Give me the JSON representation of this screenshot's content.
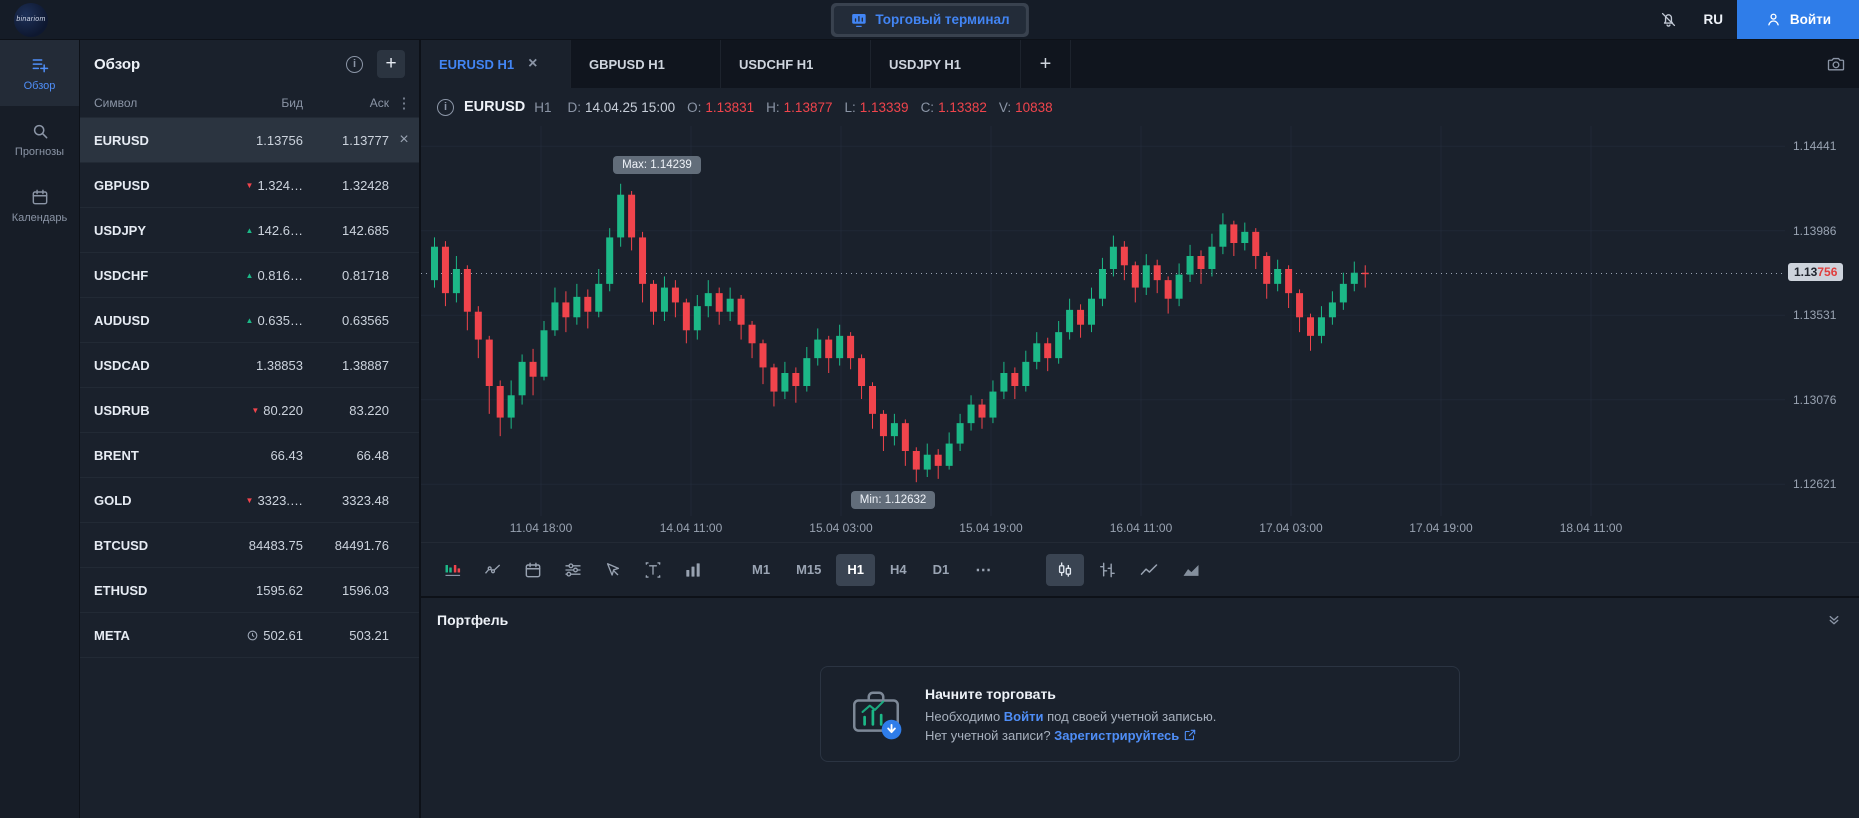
{
  "topbar": {
    "logo_text": "binariom",
    "terminal_button": "Торговый терминал",
    "language": "RU",
    "login_button": "Войти"
  },
  "nav": {
    "items": [
      {
        "id": "overview",
        "label": "Обзор",
        "icon": "watchlist",
        "active": true
      },
      {
        "id": "forecasts",
        "label": "Прогнозы",
        "icon": "search",
        "active": false
      },
      {
        "id": "calendar",
        "label": "Календарь",
        "icon": "calendar",
        "active": false
      }
    ]
  },
  "watchlist": {
    "title": "Обзор",
    "columns": {
      "symbol": "Символ",
      "bid": "Бид",
      "ask": "Аск"
    },
    "rows": [
      {
        "symbol": "EURUSD",
        "bid": "1.13756",
        "ask": "1.13777",
        "dir": "none",
        "active": true
      },
      {
        "symbol": "GBPUSD",
        "bid": "1.324…",
        "ask": "1.32428",
        "dir": "down"
      },
      {
        "symbol": "USDJPY",
        "bid": "142.6…",
        "ask": "142.685",
        "dir": "up"
      },
      {
        "symbol": "USDCHF",
        "bid": "0.816…",
        "ask": "0.81718",
        "dir": "up"
      },
      {
        "symbol": "AUDUSD",
        "bid": "0.635…",
        "ask": "0.63565",
        "dir": "up"
      },
      {
        "symbol": "USDCAD",
        "bid": "1.38853",
        "ask": "1.38887",
        "dir": "none"
      },
      {
        "symbol": "USDRUB",
        "bid": "80.220",
        "ask": "83.220",
        "dir": "down"
      },
      {
        "symbol": "BRENT",
        "bid": "66.43",
        "ask": "66.48",
        "dir": "none"
      },
      {
        "symbol": "GOLD",
        "bid": "3323.…",
        "ask": "3323.48",
        "dir": "down"
      },
      {
        "symbol": "BTCUSD",
        "bid": "84483.75",
        "ask": "84491.76",
        "dir": "none"
      },
      {
        "symbol": "ETHUSD",
        "bid": "1595.62",
        "ask": "1596.03",
        "dir": "none"
      },
      {
        "symbol": "META",
        "bid": "502.61",
        "ask": "503.21",
        "dir": "clock"
      }
    ]
  },
  "tabs": {
    "new_tab_label": "+",
    "items": [
      {
        "label": "EURUSD H1",
        "active": true,
        "closable": true
      },
      {
        "label": "GBPUSD H1",
        "active": false,
        "closable": false
      },
      {
        "label": "USDCHF H1",
        "active": false,
        "closable": false
      },
      {
        "label": "USDJPY H1",
        "active": false,
        "closable": false
      }
    ]
  },
  "chart_header": {
    "symbol": "EURUSD",
    "timeframe": "H1",
    "fields": [
      {
        "k": "D:",
        "v": "14.04.25 15:00",
        "red": false
      },
      {
        "k": "O:",
        "v": "1.13831",
        "red": true
      },
      {
        "k": "H:",
        "v": "1.13877",
        "red": true
      },
      {
        "k": "L:",
        "v": "1.13339",
        "red": true
      },
      {
        "k": "C:",
        "v": "1.13382",
        "red": true
      },
      {
        "k": "V:",
        "v": "10838",
        "red": true
      }
    ]
  },
  "chart_data": {
    "type": "candlestick",
    "title": "EURUSD H1",
    "x_labels": [
      "11.04 18:00",
      "14.04 11:00",
      "15.04 03:00",
      "15.04 19:00",
      "16.04 11:00",
      "17.04 03:00",
      "17.04 19:00",
      "18.04 11:00"
    ],
    "y_ticks": [
      1.14441,
      1.13986,
      1.13531,
      1.13076,
      1.12621
    ],
    "ylim": [
      1.1245,
      1.1455
    ],
    "grid": true,
    "current_price": "1.13756",
    "current_price_value": 1.13756,
    "current_price_prefix": "1.13",
    "current_price_suffix": "756",
    "max_label": "Max: 1.14239",
    "max_value": 1.14239,
    "max_index": 17,
    "min_label": "Min: 1.12632",
    "min_value": 1.12632,
    "min_index": 44,
    "up_color": "#1cb887",
    "down_color": "#f0444c",
    "candles": [
      [
        1.1372,
        1.1395,
        1.1368,
        1.139
      ],
      [
        1.139,
        1.1393,
        1.1358,
        1.1365
      ],
      [
        1.1365,
        1.1385,
        1.136,
        1.1378
      ],
      [
        1.1378,
        1.138,
        1.1345,
        1.1355
      ],
      [
        1.1355,
        1.1358,
        1.133,
        1.134
      ],
      [
        1.134,
        1.1342,
        1.13,
        1.1315
      ],
      [
        1.1315,
        1.1318,
        1.1288,
        1.1298
      ],
      [
        1.1298,
        1.1318,
        1.1292,
        1.131
      ],
      [
        1.131,
        1.1332,
        1.1305,
        1.1328
      ],
      [
        1.1328,
        1.1335,
        1.131,
        1.132
      ],
      [
        1.132,
        1.135,
        1.1318,
        1.1345
      ],
      [
        1.1345,
        1.1368,
        1.1342,
        1.136
      ],
      [
        1.136,
        1.1366,
        1.1344,
        1.1352
      ],
      [
        1.1352,
        1.137,
        1.1348,
        1.1363
      ],
      [
        1.1363,
        1.1367,
        1.1346,
        1.1355
      ],
      [
        1.1355,
        1.1378,
        1.1352,
        1.137
      ],
      [
        1.137,
        1.14,
        1.1366,
        1.1395
      ],
      [
        1.1395,
        1.14239,
        1.139,
        1.1418
      ],
      [
        1.1418,
        1.142,
        1.1388,
        1.1395
      ],
      [
        1.1395,
        1.1398,
        1.136,
        1.137
      ],
      [
        1.137,
        1.1372,
        1.1348,
        1.1355
      ],
      [
        1.1355,
        1.1374,
        1.135,
        1.1368
      ],
      [
        1.1368,
        1.1372,
        1.1352,
        1.136
      ],
      [
        1.136,
        1.1362,
        1.1338,
        1.1345
      ],
      [
        1.1345,
        1.1364,
        1.134,
        1.1358
      ],
      [
        1.1358,
        1.1372,
        1.1352,
        1.1365
      ],
      [
        1.1365,
        1.1368,
        1.1348,
        1.1355
      ],
      [
        1.1355,
        1.1368,
        1.135,
        1.1362
      ],
      [
        1.1362,
        1.1364,
        1.134,
        1.1348
      ],
      [
        1.1348,
        1.135,
        1.133,
        1.1338
      ],
      [
        1.1338,
        1.134,
        1.1316,
        1.1325
      ],
      [
        1.1325,
        1.1327,
        1.1304,
        1.1312
      ],
      [
        1.1312,
        1.1328,
        1.1308,
        1.1322
      ],
      [
        1.1322,
        1.1325,
        1.1306,
        1.1315
      ],
      [
        1.1315,
        1.1336,
        1.1312,
        1.133
      ],
      [
        1.133,
        1.1346,
        1.1326,
        1.134
      ],
      [
        1.134,
        1.1342,
        1.1322,
        1.133
      ],
      [
        1.133,
        1.1348,
        1.1326,
        1.1342
      ],
      [
        1.1342,
        1.1344,
        1.1324,
        1.133
      ],
      [
        1.133,
        1.1332,
        1.1308,
        1.1315
      ],
      [
        1.1315,
        1.1317,
        1.1292,
        1.13
      ],
      [
        1.13,
        1.1302,
        1.128,
        1.1288
      ],
      [
        1.1288,
        1.13,
        1.1283,
        1.1295
      ],
      [
        1.1295,
        1.1297,
        1.1272,
        1.128
      ],
      [
        1.128,
        1.1282,
        1.12632,
        1.127
      ],
      [
        1.127,
        1.1284,
        1.1266,
        1.1278
      ],
      [
        1.1278,
        1.1281,
        1.1265,
        1.1272
      ],
      [
        1.1272,
        1.129,
        1.127,
        1.1284
      ],
      [
        1.1284,
        1.13,
        1.128,
        1.1295
      ],
      [
        1.1295,
        1.131,
        1.1291,
        1.1305
      ],
      [
        1.1305,
        1.1308,
        1.1292,
        1.1298
      ],
      [
        1.1298,
        1.1318,
        1.1295,
        1.1312
      ],
      [
        1.1312,
        1.1328,
        1.1308,
        1.1322
      ],
      [
        1.1322,
        1.1325,
        1.1308,
        1.1315
      ],
      [
        1.1315,
        1.1334,
        1.1312,
        1.1328
      ],
      [
        1.1328,
        1.1344,
        1.1324,
        1.1338
      ],
      [
        1.1338,
        1.1341,
        1.1323,
        1.133
      ],
      [
        1.133,
        1.135,
        1.1327,
        1.1344
      ],
      [
        1.1344,
        1.1362,
        1.134,
        1.1356
      ],
      [
        1.1356,
        1.1359,
        1.1341,
        1.1348
      ],
      [
        1.1348,
        1.1368,
        1.1344,
        1.1362
      ],
      [
        1.1362,
        1.1384,
        1.1358,
        1.1378
      ],
      [
        1.1378,
        1.1396,
        1.1374,
        1.139
      ],
      [
        1.139,
        1.1393,
        1.1372,
        1.138
      ],
      [
        1.138,
        1.1382,
        1.136,
        1.1368
      ],
      [
        1.1368,
        1.1386,
        1.1364,
        1.138
      ],
      [
        1.138,
        1.1383,
        1.1365,
        1.1372
      ],
      [
        1.1372,
        1.1374,
        1.1354,
        1.1362
      ],
      [
        1.1362,
        1.1381,
        1.1358,
        1.1375
      ],
      [
        1.1375,
        1.1391,
        1.1371,
        1.1385
      ],
      [
        1.1385,
        1.1388,
        1.137,
        1.1378
      ],
      [
        1.1378,
        1.1397,
        1.1374,
        1.139
      ],
      [
        1.139,
        1.1408,
        1.1386,
        1.1402
      ],
      [
        1.1402,
        1.1404,
        1.1385,
        1.1392
      ],
      [
        1.1392,
        1.1403,
        1.1388,
        1.1398
      ],
      [
        1.1398,
        1.14,
        1.1378,
        1.1385
      ],
      [
        1.1385,
        1.1387,
        1.1362,
        1.137
      ],
      [
        1.137,
        1.1383,
        1.1366,
        1.1378
      ],
      [
        1.1378,
        1.138,
        1.1357,
        1.1365
      ],
      [
        1.1365,
        1.1367,
        1.1344,
        1.1352
      ],
      [
        1.1352,
        1.1354,
        1.1334,
        1.1342
      ],
      [
        1.1342,
        1.1358,
        1.1338,
        1.1352
      ],
      [
        1.1352,
        1.1366,
        1.1348,
        1.136
      ],
      [
        1.136,
        1.1376,
        1.1356,
        1.137
      ],
      [
        1.137,
        1.1382,
        1.1366,
        1.1376
      ],
      [
        1.1376,
        1.138,
        1.1368,
        1.13756
      ]
    ]
  },
  "toolbar": {
    "tools": [
      "display",
      "indicators",
      "calendar",
      "settings",
      "cursor",
      "text",
      "volume"
    ],
    "timeframes": [
      "M1",
      "M15",
      "H1",
      "H4",
      "D1"
    ],
    "active_timeframe": "H1",
    "more_label": "⋯",
    "chart_types": [
      "candles",
      "bars",
      "line",
      "area"
    ],
    "active_chart_type": "candles"
  },
  "portfolio": {
    "title": "Портфель",
    "cta_title": "Начните торговать",
    "line1_pre": "Необходимо ",
    "line1_link": "Войти",
    "line1_post": " под своей учетной записью.",
    "line2_pre": "Нет учетной записи? ",
    "line2_link": "Зарегистрируйтесь"
  }
}
